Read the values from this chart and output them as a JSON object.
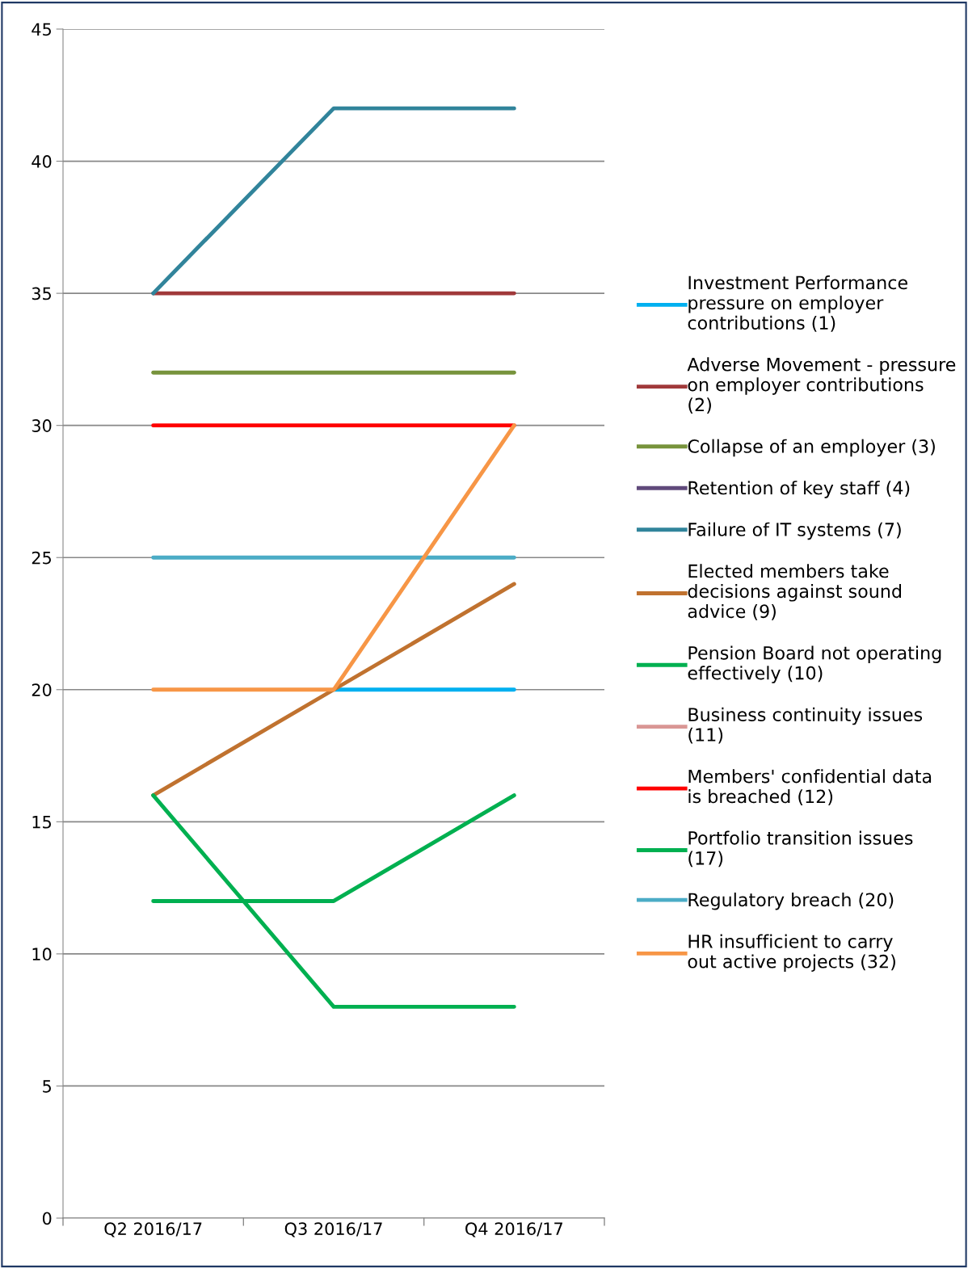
{
  "chart_data": {
    "type": "line",
    "categories": [
      "Q2 2016/17",
      "Q3 2016/17",
      "Q4 2016/17"
    ],
    "series": [
      {
        "name": "Investment Performance pressure on employer contributions (1)",
        "color": "#00b0f0",
        "values": [
          null,
          20,
          20
        ]
      },
      {
        "name": "Adverse Movement - pressure on employer contributions (2)",
        "color": "#a0393a",
        "values": [
          35,
          35,
          35
        ]
      },
      {
        "name": "Collapse of an employer (3)",
        "color": "#77933c",
        "values": [
          32,
          32,
          32
        ]
      },
      {
        "name": "Retention of key staff (4)",
        "color": "#604a7b",
        "values": [
          null,
          null,
          null
        ]
      },
      {
        "name": "Failure of IT systems (7)",
        "color": "#31849b",
        "values": [
          35,
          42,
          42
        ]
      },
      {
        "name": "Elected members take decisions against sound advice (9)",
        "color": "#c0722f",
        "values": [
          16,
          20,
          24
        ]
      },
      {
        "name": "Pension Board not operating effectively (10)",
        "color": "#00b050",
        "values": [
          12,
          12,
          16
        ]
      },
      {
        "name": "Business continuity issues (11)",
        "color": "#d99694",
        "values": [
          null,
          null,
          null
        ]
      },
      {
        "name": "Members' confidential data is breached (12)",
        "color": "#ff0000",
        "values": [
          30,
          30,
          30
        ]
      },
      {
        "name": "Portfolio transition issues (17)",
        "color": "#00b050",
        "values": [
          16,
          8,
          8
        ]
      },
      {
        "name": "Regulatory breach (20)",
        "color": "#4bacc6",
        "values": [
          25,
          25,
          25
        ]
      },
      {
        "name": "HR insufficient to carry out active projects (32)",
        "color": "#f79646",
        "values": [
          20,
          20,
          30
        ]
      }
    ],
    "ylim": [
      0,
      45
    ],
    "yticks": [
      0,
      5,
      10,
      15,
      20,
      25,
      30,
      35,
      40,
      45
    ],
    "grid": "y",
    "legend": "right",
    "marker": "none",
    "line_style": "solid"
  }
}
